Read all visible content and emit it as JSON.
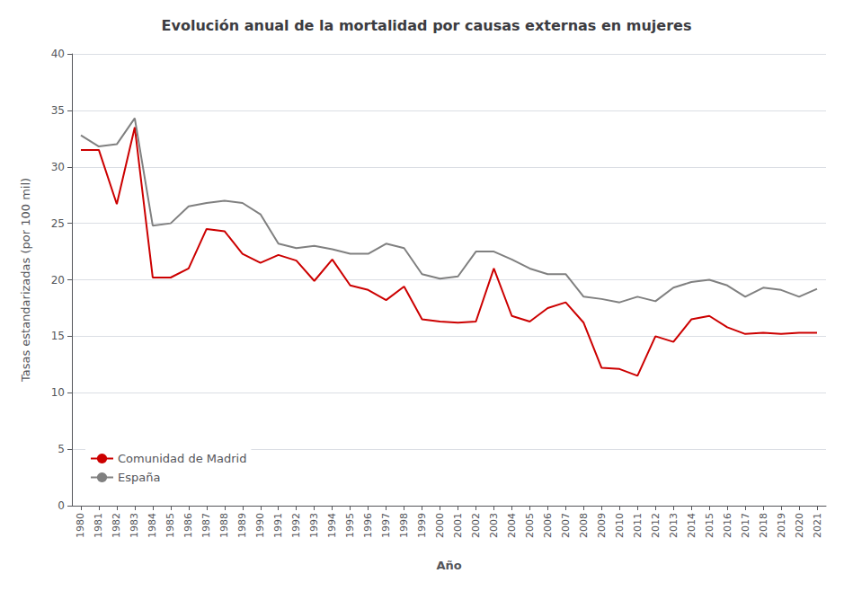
{
  "chart_data": {
    "type": "line",
    "title": "Evolución anual de la mortalidad por causas externas en mujeres",
    "xlabel": "Año",
    "ylabel": "Tasas estandarizadas (por 100 mil)",
    "x": [
      1980,
      1981,
      1982,
      1983,
      1984,
      1985,
      1986,
      1987,
      1988,
      1989,
      1990,
      1991,
      1992,
      1993,
      1994,
      1995,
      1996,
      1997,
      1998,
      1999,
      2000,
      2001,
      2002,
      2003,
      2004,
      2005,
      2006,
      2007,
      2008,
      2009,
      2010,
      2011,
      2012,
      2013,
      2014,
      2015,
      2016,
      2017,
      2018,
      2019,
      2020,
      2021
    ],
    "series": [
      {
        "name": "Comunidad de Madrid",
        "color": "#cc0000",
        "values": [
          31.5,
          31.5,
          26.7,
          33.5,
          20.2,
          20.2,
          21.0,
          24.5,
          24.3,
          22.3,
          21.5,
          22.2,
          21.7,
          19.9,
          21.8,
          19.5,
          19.1,
          18.2,
          19.4,
          16.5,
          16.3,
          16.2,
          16.3,
          21.0,
          16.8,
          16.3,
          17.5,
          18.0,
          16.2,
          12.2,
          12.1,
          11.5,
          15.0,
          14.5,
          16.5,
          16.8,
          15.8,
          15.2,
          15.3,
          15.2,
          15.3,
          15.3
        ]
      },
      {
        "name": "España",
        "color": "#808080",
        "values": [
          32.8,
          31.8,
          32.0,
          34.3,
          24.8,
          25.0,
          26.5,
          26.8,
          27.0,
          26.8,
          25.8,
          23.2,
          22.8,
          23.0,
          22.7,
          22.3,
          22.3,
          23.2,
          22.8,
          20.5,
          20.1,
          20.3,
          22.5,
          22.5,
          21.8,
          21.0,
          20.5,
          20.5,
          18.5,
          18.3,
          18.0,
          18.5,
          18.1,
          19.3,
          19.8,
          20.0,
          19.5,
          18.5,
          19.3,
          19.1,
          18.5,
          19.2
        ]
      }
    ],
    "xlim": [
      1979.5,
      2021.5
    ],
    "xticks": [
      1980,
      1981,
      1982,
      1983,
      1984,
      1985,
      1986,
      1987,
      1988,
      1989,
      1990,
      1991,
      1992,
      1993,
      1994,
      1995,
      1996,
      1997,
      1998,
      1999,
      2000,
      2001,
      2002,
      2003,
      2004,
      2005,
      2006,
      2007,
      2008,
      2009,
      2010,
      2011,
      2012,
      2013,
      2014,
      2015,
      2016,
      2017,
      2018,
      2019,
      2020,
      2021
    ],
    "ylim": [
      0,
      40
    ],
    "yticks": [
      0,
      5,
      10,
      15,
      20,
      25,
      30,
      35,
      40
    ],
    "grid": true,
    "legend": "lower left"
  }
}
